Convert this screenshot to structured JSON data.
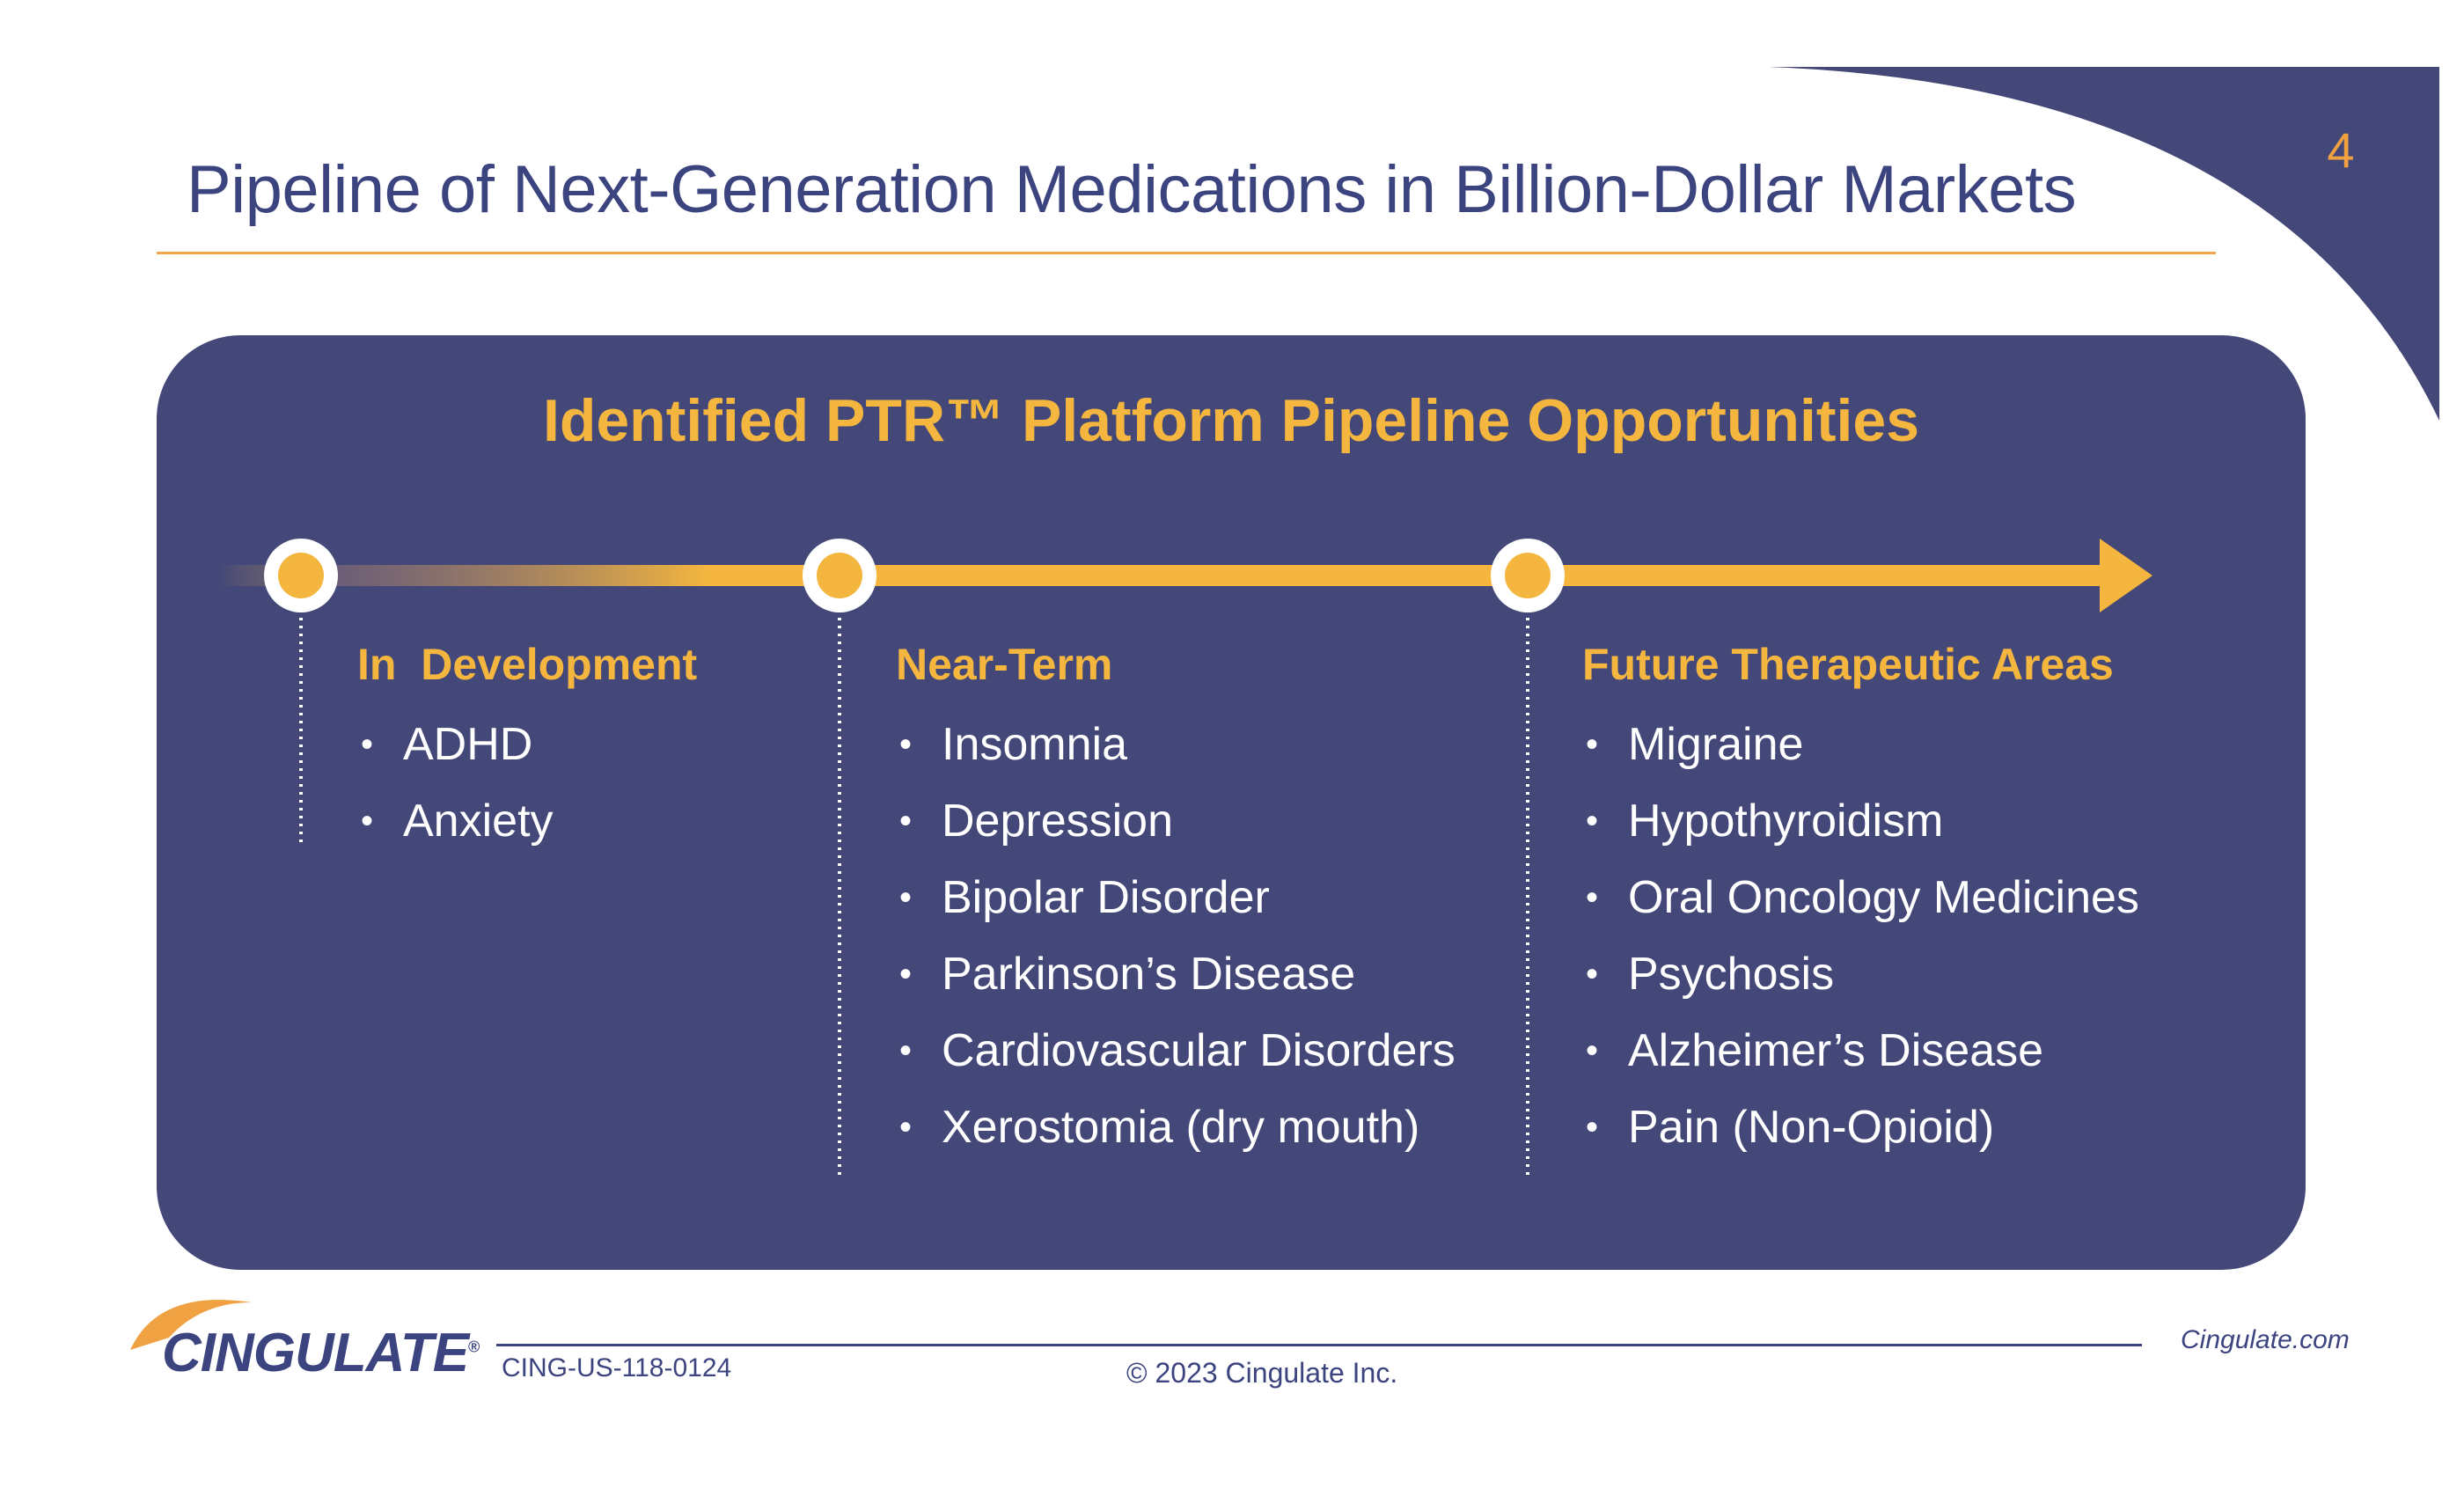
{
  "slide": {
    "page_number": "4",
    "title": "Pipeline of Next-Generation Medications in Billion-Dollar Markets"
  },
  "panel": {
    "title": "Identified PTR™ Platform Pipeline Opportunities",
    "columns": [
      {
        "heading": "In  Development",
        "items": [
          "ADHD",
          "Anxiety"
        ]
      },
      {
        "heading": "Near-Term",
        "items": [
          "Insomnia",
          "Depression",
          "Bipolar Disorder",
          "Parkinson’s Disease",
          "Cardiovascular Disorders",
          "Xerostomia (dry mouth)"
        ]
      },
      {
        "heading": "Future Therapeutic Areas",
        "items": [
          "Migraine",
          "Hypothyroidism",
          "Oral Oncology Medicines",
          "Psychosis",
          "Alzheimer’s Disease",
          "Pain (Non-Opioid)"
        ]
      }
    ]
  },
  "footer": {
    "logo_text": "CINGULATE",
    "logo_mark": "®",
    "doc_code": "CING-US-118-0124",
    "copyright": "© 2023 Cingulate Inc.",
    "website": "Cingulate.com"
  },
  "colors": {
    "navy": "#434878",
    "title_navy": "#3c4480",
    "gold": "#f4b63e",
    "orange": "#f0a142"
  }
}
